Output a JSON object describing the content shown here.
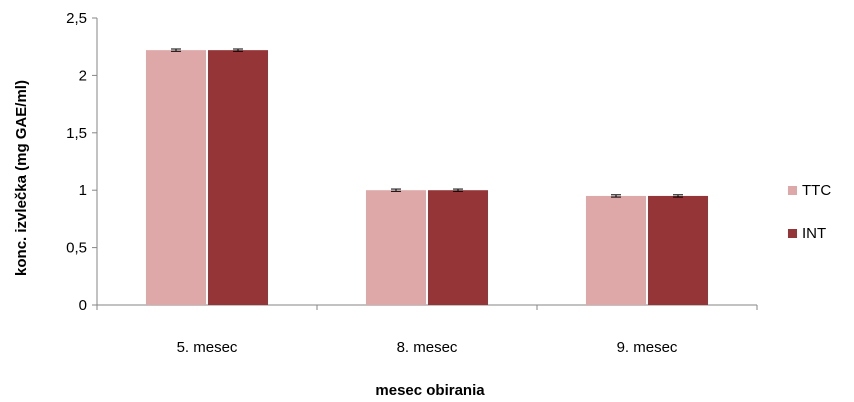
{
  "chart_data": {
    "type": "bar",
    "title": "",
    "xlabel": "mesec obirania",
    "ylabel": "konc. izvlečka   (mg GAE/ml)",
    "categories": [
      "5. mesec",
      "8. mesec",
      "9. mesec"
    ],
    "series": [
      {
        "name": "TTC",
        "values": [
          2.22,
          1.0,
          0.95
        ],
        "error": [
          0.01,
          0.01,
          0.01
        ],
        "color": "#dea8a8"
      },
      {
        "name": "INT",
        "values": [
          2.22,
          1.0,
          0.95
        ],
        "error": [
          0.01,
          0.01,
          0.01
        ],
        "color": "#953537"
      }
    ],
    "ylim": [
      0,
      2.5
    ],
    "yticks": [
      0,
      0.5,
      1,
      1.5,
      2,
      2.5
    ],
    "ytick_labels": [
      "0",
      "0,5",
      "1",
      "1,5",
      "2",
      "2,5"
    ],
    "grid": false,
    "legend": "right"
  }
}
